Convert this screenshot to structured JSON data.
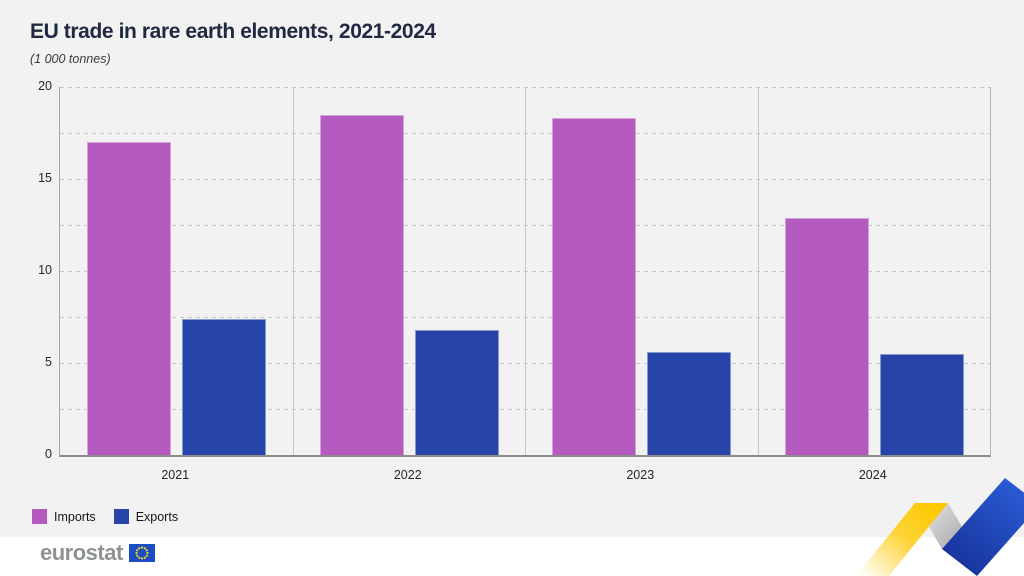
{
  "header": {
    "title": "EU trade in rare earth elements, 2021-2024",
    "subtitle": "(1 000 tonnes)"
  },
  "chart_data": {
    "type": "bar",
    "title": "EU trade in rare earth elements, 2021-2024",
    "subtitle_unit": "(1 000 tonnes)",
    "categories": [
      "2021",
      "2022",
      "2023",
      "2024"
    ],
    "series": [
      {
        "name": "Imports",
        "color": "#b55abe",
        "values": [
          17.0,
          18.5,
          18.3,
          12.9
        ]
      },
      {
        "name": "Exports",
        "color": "#2745a9",
        "values": [
          7.4,
          6.8,
          5.6,
          5.5
        ]
      }
    ],
    "ylim": [
      0,
      20
    ],
    "yticks": [
      0,
      5,
      10,
      15,
      20
    ],
    "gridline_step": 2.5,
    "grid": "dashed-horizontal",
    "legend_position": "bottom-left"
  },
  "footer": {
    "logo_text": "eurostat"
  },
  "decor": {
    "flag_blue": "#1a4fc4",
    "star_yellow": "#ffd617",
    "ribbon_yellow": "#fdc800",
    "ribbon_gray": "#b3b3b6",
    "ribbon_blue": "#1c3ca8"
  }
}
